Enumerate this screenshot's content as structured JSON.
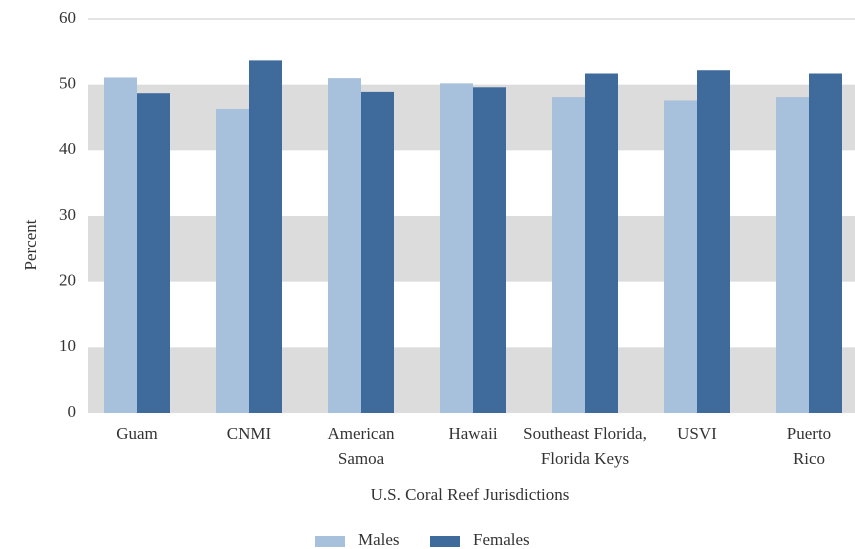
{
  "chart_data": {
    "type": "bar",
    "xlabel": "U.S. Coral Reef Jurisdictions",
    "ylabel": "Percent",
    "categories": [
      [
        "Guam"
      ],
      [
        "CNMI"
      ],
      [
        "American",
        "Samoa"
      ],
      [
        "Hawaii"
      ],
      [
        "Southeast Florida,",
        "Florida Keys"
      ],
      [
        "USVI"
      ],
      [
        "Puerto",
        "Rico"
      ]
    ],
    "series": [
      {
        "name": "Males",
        "color": "#a7c1dd",
        "values": [
          51.1,
          46.3,
          51.0,
          50.2,
          48.1,
          47.6,
          48.1
        ]
      },
      {
        "name": "Females",
        "color": "#3e6b9c",
        "values": [
          48.7,
          53.7,
          48.9,
          49.6,
          51.7,
          52.2,
          51.7
        ]
      }
    ],
    "ylim": [
      0,
      60
    ],
    "yticks": [
      0,
      10,
      20,
      30,
      40,
      50,
      60
    ],
    "grid": "bands",
    "legend": "bottom"
  }
}
